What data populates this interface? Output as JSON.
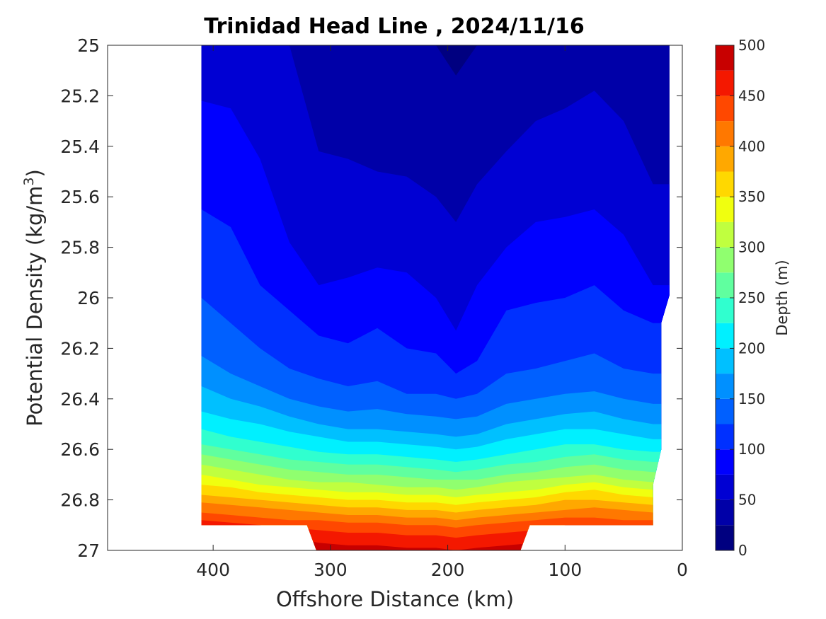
{
  "chart_data": {
    "type": "heatmap",
    "subtype": "filled-contour",
    "title": "Trinidad Head Line , 2024/11/16",
    "xlabel": "Offshore Distance (km)",
    "ylabel_text": "Potential Density (kg/m",
    "ylabel_sup": "3",
    "ylabel_close": ")",
    "colorbar_label": "Depth (m)",
    "xlim": [
      490,
      0
    ],
    "ylim": [
      25,
      27
    ],
    "x_reversed": true,
    "y_reversed": true,
    "x_ticks": [
      400,
      300,
      200,
      100,
      0
    ],
    "y_ticks": [
      "25",
      "25.2",
      "25.4",
      "25.6",
      "25.8",
      "26",
      "26.2",
      "26.4",
      "26.6",
      "26.8",
      "27"
    ],
    "colorbar_range": [
      0,
      500
    ],
    "colorbar_ticks": [
      0,
      50,
      100,
      150,
      200,
      250,
      300,
      350,
      400,
      450,
      500
    ],
    "contour_step": 25,
    "colormap": [
      "#000080",
      "#0000a8",
      "#0000d3",
      "#0000ff",
      "#0030ff",
      "#0060ff",
      "#0090ff",
      "#00c0ff",
      "#00f0ff",
      "#30ffcf",
      "#60ff9f",
      "#90ff6f",
      "#c0ff3f",
      "#f0ff0f",
      "#ffd800",
      "#ffa800",
      "#ff7800",
      "#ff4800",
      "#f41800",
      "#c80000"
    ],
    "grid": false,
    "station_x_km": [
      410,
      385,
      360,
      335,
      310,
      285,
      260,
      235,
      210,
      193,
      175,
      150,
      125,
      100,
      75,
      50,
      25
    ],
    "isopycnal_depth_contours": [
      {
        "depth": 25,
        "y": [
          25.0,
          25.0,
          25.0,
          25.0,
          25.0,
          25.0,
          25.0,
          25.0,
          25.0,
          25.12,
          25.0,
          25.0,
          25.0,
          25.0,
          25.0,
          25.0,
          25.0
        ]
      },
      {
        "depth": 50,
        "y": [
          25.0,
          25.0,
          25.0,
          25.0,
          25.42,
          25.45,
          25.5,
          25.52,
          25.6,
          25.7,
          25.55,
          25.42,
          25.3,
          25.25,
          25.18,
          25.3,
          25.55
        ]
      },
      {
        "depth": 75,
        "y": [
          25.22,
          25.25,
          25.45,
          25.78,
          25.95,
          25.92,
          25.88,
          25.9,
          26.0,
          26.13,
          25.95,
          25.8,
          25.7,
          25.68,
          25.65,
          25.75,
          25.95
        ]
      },
      {
        "depth": 100,
        "y": [
          25.65,
          25.72,
          25.95,
          26.05,
          26.15,
          26.18,
          26.12,
          26.2,
          26.22,
          26.3,
          26.25,
          26.05,
          26.02,
          26.0,
          25.95,
          26.05,
          26.1
        ]
      },
      {
        "depth": 125,
        "y": [
          26.0,
          26.1,
          26.2,
          26.28,
          26.32,
          26.35,
          26.33,
          26.38,
          26.38,
          26.4,
          26.38,
          26.3,
          26.28,
          26.25,
          26.22,
          26.28,
          26.3
        ]
      },
      {
        "depth": 150,
        "y": [
          26.23,
          26.3,
          26.35,
          26.4,
          26.43,
          26.45,
          26.44,
          26.46,
          26.47,
          26.48,
          26.47,
          26.42,
          26.4,
          26.38,
          26.37,
          26.4,
          26.42
        ]
      },
      {
        "depth": 175,
        "y": [
          26.35,
          26.4,
          26.43,
          26.47,
          26.5,
          26.52,
          26.52,
          26.53,
          26.54,
          26.55,
          26.54,
          26.5,
          26.48,
          26.46,
          26.45,
          26.48,
          26.5
        ]
      },
      {
        "depth": 200,
        "y": [
          26.45,
          26.48,
          26.5,
          26.53,
          26.55,
          26.57,
          26.57,
          26.58,
          26.59,
          26.6,
          26.59,
          26.56,
          26.54,
          26.52,
          26.52,
          26.54,
          26.56
        ]
      },
      {
        "depth": 225,
        "y": [
          26.52,
          26.55,
          26.57,
          26.59,
          26.61,
          26.62,
          26.62,
          26.63,
          26.64,
          26.65,
          26.64,
          26.62,
          26.6,
          26.58,
          26.58,
          26.6,
          26.61
        ]
      },
      {
        "depth": 250,
        "y": [
          26.58,
          26.6,
          26.62,
          26.64,
          26.65,
          26.66,
          26.66,
          26.67,
          26.68,
          26.69,
          26.68,
          26.66,
          26.65,
          26.63,
          26.62,
          26.64,
          26.65
        ]
      },
      {
        "depth": 275,
        "y": [
          26.62,
          26.64,
          26.66,
          26.68,
          26.69,
          26.7,
          26.7,
          26.71,
          26.72,
          26.72,
          26.72,
          26.7,
          26.69,
          26.67,
          26.66,
          26.68,
          26.69
        ]
      },
      {
        "depth": 300,
        "y": [
          26.66,
          26.68,
          26.7,
          26.72,
          26.73,
          26.73,
          26.74,
          26.75,
          26.75,
          26.76,
          26.75,
          26.73,
          26.72,
          26.71,
          26.7,
          26.72,
          26.73
        ]
      },
      {
        "depth": 325,
        "y": [
          26.7,
          26.72,
          26.74,
          26.75,
          26.76,
          26.77,
          26.77,
          26.78,
          26.78,
          26.79,
          26.78,
          26.77,
          26.76,
          26.74,
          26.73,
          26.75,
          26.76
        ]
      },
      {
        "depth": 350,
        "y": [
          26.74,
          26.75,
          26.77,
          26.78,
          26.79,
          26.8,
          26.8,
          26.81,
          26.81,
          26.82,
          26.81,
          26.8,
          26.79,
          26.77,
          26.76,
          26.78,
          26.79
        ]
      },
      {
        "depth": 375,
        "y": [
          26.78,
          26.79,
          26.8,
          26.81,
          26.82,
          26.83,
          26.83,
          26.84,
          26.84,
          26.85,
          26.84,
          26.83,
          26.82,
          26.8,
          26.8,
          26.81,
          26.82
        ]
      },
      {
        "depth": 400,
        "y": [
          26.81,
          26.82,
          26.83,
          26.84,
          26.85,
          26.86,
          26.86,
          26.87,
          26.87,
          26.88,
          26.87,
          26.86,
          26.85,
          26.84,
          26.83,
          26.84,
          26.85
        ]
      },
      {
        "depth": 425,
        "y": [
          26.85,
          26.86,
          26.87,
          26.88,
          26.88,
          26.89,
          26.89,
          26.9,
          26.9,
          26.91,
          26.9,
          26.89,
          26.88,
          26.87,
          26.87,
          26.88,
          26.88
        ]
      },
      {
        "depth": 450,
        "y": [
          26.88,
          26.89,
          26.9,
          26.91,
          26.92,
          26.93,
          26.93,
          26.94,
          26.94,
          26.95,
          26.94,
          26.93,
          26.92,
          26.9,
          26.9,
          26.9,
          26.9
        ]
      },
      {
        "depth": 475,
        "y": [
          26.9,
          26.9,
          26.9,
          26.95,
          26.97,
          26.98,
          26.98,
          26.99,
          26.99,
          27.0,
          26.99,
          26.98,
          26.97,
          26.9,
          26.9,
          26.9,
          26.9
        ]
      }
    ],
    "data_region_outline": [
      [
        410,
        25.0
      ],
      [
        11,
        25.0
      ],
      [
        11,
        25.99
      ],
      [
        18,
        26.1
      ],
      [
        18,
        26.6
      ],
      [
        25,
        26.74
      ],
      [
        25,
        26.9
      ],
      [
        130,
        26.9
      ],
      [
        138,
        27.0
      ],
      [
        312,
        27.0
      ],
      [
        320,
        26.9
      ],
      [
        410,
        26.9
      ]
    ]
  }
}
